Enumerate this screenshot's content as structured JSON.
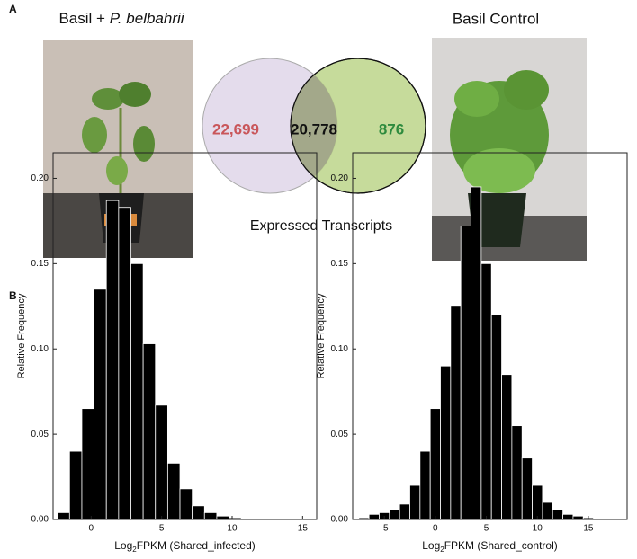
{
  "panel_labels": [
    "A",
    "B"
  ],
  "panel_a": {
    "left_caption": {
      "plain": "Basil + ",
      "italic": "P. belbahrii"
    },
    "right_caption": "Basil Control",
    "venn": {
      "left_only": "22,699",
      "shared": "20,778",
      "right_only": "876",
      "caption": "Expressed Transcripts"
    }
  },
  "chart_data": [
    {
      "type": "histogram",
      "ylabel": "Relative Frequency",
      "xlabel": {
        "base": "Log",
        "sub": "2",
        "rest": "FPKM (Shared_infected)"
      },
      "bins": [
        -2.4,
        -1.53,
        -0.66,
        0.21,
        1.08,
        1.95,
        2.82,
        3.69,
        4.56,
        5.43,
        6.3,
        7.17,
        8.04,
        8.91,
        9.78,
        10.65
      ],
      "values": [
        0.004,
        0.04,
        0.065,
        0.135,
        0.187,
        0.183,
        0.15,
        0.103,
        0.067,
        0.033,
        0.018,
        0.008,
        0.004,
        0.002,
        0.001
      ],
      "color": "#000000",
      "xlim": [
        -2.7,
        16
      ],
      "xticks": [
        0,
        5,
        10,
        15
      ],
      "ylim": [
        0,
        0.215
      ],
      "yticks": [
        {
          "value": 0,
          "label": "0.00"
        },
        {
          "value": 0.05,
          "label": "0.05"
        },
        {
          "value": 0.1,
          "label": "0.10"
        },
        {
          "value": 0.15,
          "label": "0.15"
        },
        {
          "value": 0.2,
          "label": "0.20"
        }
      ]
    },
    {
      "type": "histogram",
      "ylabel": "Relative Frequency",
      "xlabel": {
        "base": "Log",
        "sub": "2",
        "rest": "FPKM (Shared_control)"
      },
      "bins": [
        -7.5,
        -6.5,
        -5.5,
        -4.5,
        -3.5,
        -2.5,
        -1.5,
        -0.5,
        0.5,
        1.5,
        2.5,
        3.5,
        4.5,
        5.5,
        6.5,
        7.5,
        8.5,
        9.5,
        10.5,
        11.5,
        12.5,
        13.5,
        14.5,
        15.5
      ],
      "values": [
        0.001,
        0.003,
        0.004,
        0.006,
        0.009,
        0.02,
        0.04,
        0.065,
        0.09,
        0.125,
        0.172,
        0.195,
        0.15,
        0.12,
        0.085,
        0.055,
        0.036,
        0.02,
        0.01,
        0.006,
        0.003,
        0.002,
        0.001
      ],
      "color": "#000000",
      "xlim": [
        -8.1,
        18.8
      ],
      "xticks": [
        -5,
        0,
        5,
        10,
        15
      ],
      "ylim": [
        0,
        0.215
      ],
      "yticks": [
        {
          "value": 0,
          "label": "0.00"
        },
        {
          "value": 0.05,
          "label": "0.05"
        },
        {
          "value": 0.1,
          "label": "0.10"
        },
        {
          "value": 0.15,
          "label": "0.15"
        },
        {
          "value": 0.2,
          "label": "0.20"
        }
      ]
    }
  ]
}
